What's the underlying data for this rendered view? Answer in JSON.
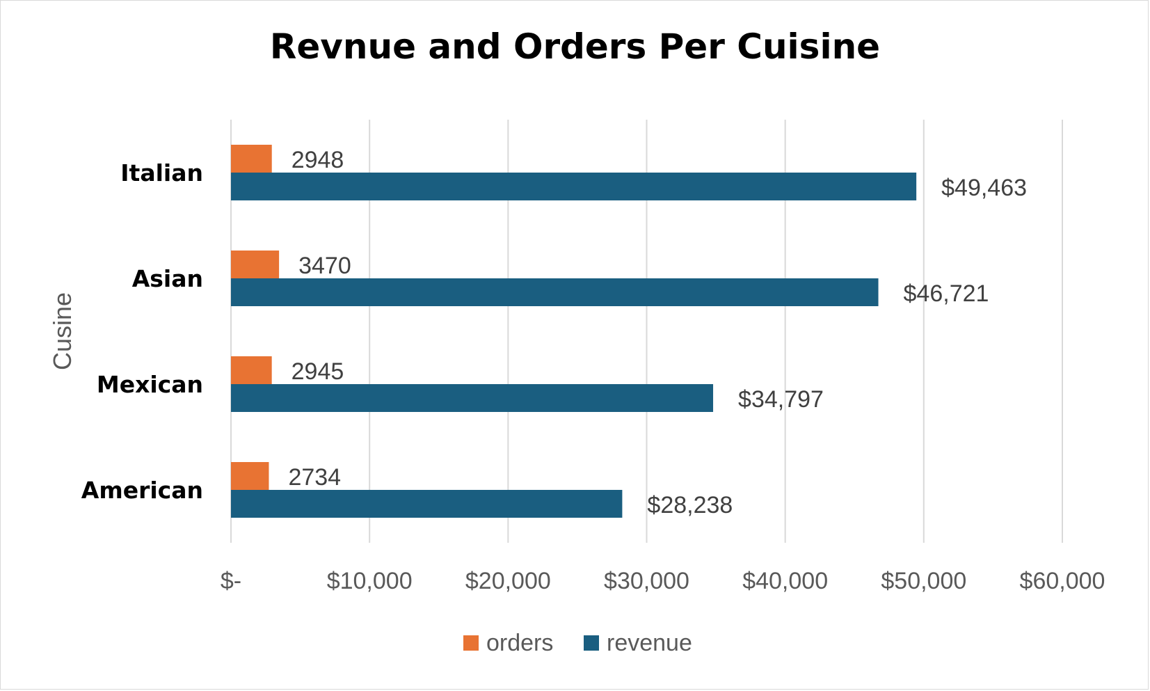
{
  "colors": {
    "orders": "#E87333",
    "revenue": "#1A5E80",
    "grid": "#d9d9d9"
  },
  "chart_data": {
    "type": "bar",
    "orientation": "horizontal",
    "title": "Revnue and Orders Per Cuisine",
    "ylabel": "Cusine",
    "xlabel": "",
    "categories": [
      "Italian",
      "Asian",
      "Mexican",
      "American"
    ],
    "series": [
      {
        "name": "orders",
        "values": [
          2948,
          3470,
          2945,
          2734
        ],
        "labels": [
          "2948",
          "3470",
          "2945",
          "2734"
        ]
      },
      {
        "name": "revenue",
        "values": [
          49463,
          46721,
          34797,
          28238
        ],
        "labels": [
          "$49,463",
          "$46,721",
          "$34,797",
          "$28,238"
        ]
      }
    ],
    "xlim": [
      0,
      60000
    ],
    "xticks": [
      0,
      10000,
      20000,
      30000,
      40000,
      50000,
      60000
    ],
    "xtick_labels": [
      "$-",
      "$10,000",
      "$20,000",
      "$30,000",
      "$40,000",
      "$50,000",
      "$60,000"
    ],
    "grid": "vertical",
    "legend_position": "bottom"
  }
}
